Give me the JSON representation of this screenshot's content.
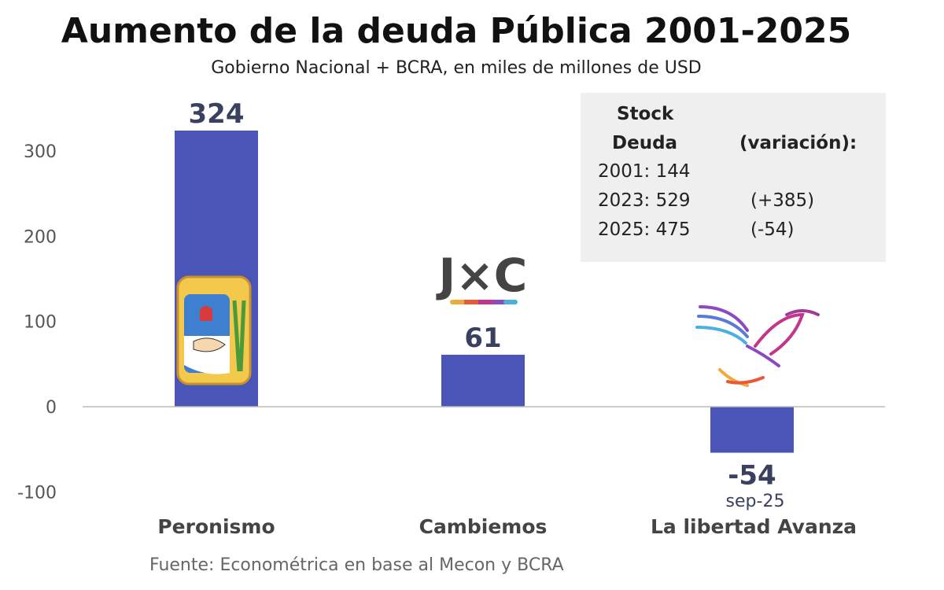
{
  "chart_data": {
    "type": "bar",
    "title": "Aumento de la deuda Pública 2001-2025",
    "subtitle": "Gobierno Nacional + BCRA, en miles de millones de USD",
    "categories": [
      "Peronismo",
      "Cambiemos",
      "La libertad Avanza"
    ],
    "values": [
      324,
      61,
      -54
    ],
    "data_labels": [
      "324",
      "61",
      "-54"
    ],
    "annotations": [
      "sep-25"
    ],
    "ylim": [
      -100,
      324
    ],
    "yticks": [
      -100,
      0,
      100,
      200,
      300
    ],
    "grid": false,
    "bar_color": "#4b55b8",
    "source": "Fuente: Econométrica en base al Mecon y BCRA"
  },
  "infobox": {
    "header_left_1": "Stock",
    "header_left_2": "Deuda",
    "header_right": "(variación):",
    "rows": [
      {
        "label": "2001: 144",
        "variation": ""
      },
      {
        "label": "2023: 529",
        "variation": "(+385)"
      },
      {
        "label": "2025: 475",
        "variation": "(-54)"
      }
    ]
  },
  "logos": {
    "cambiemos": "J×C",
    "icons": [
      "peronist-shield-icon",
      "jxc-logo-icon",
      "lla-eagle-icon"
    ]
  }
}
